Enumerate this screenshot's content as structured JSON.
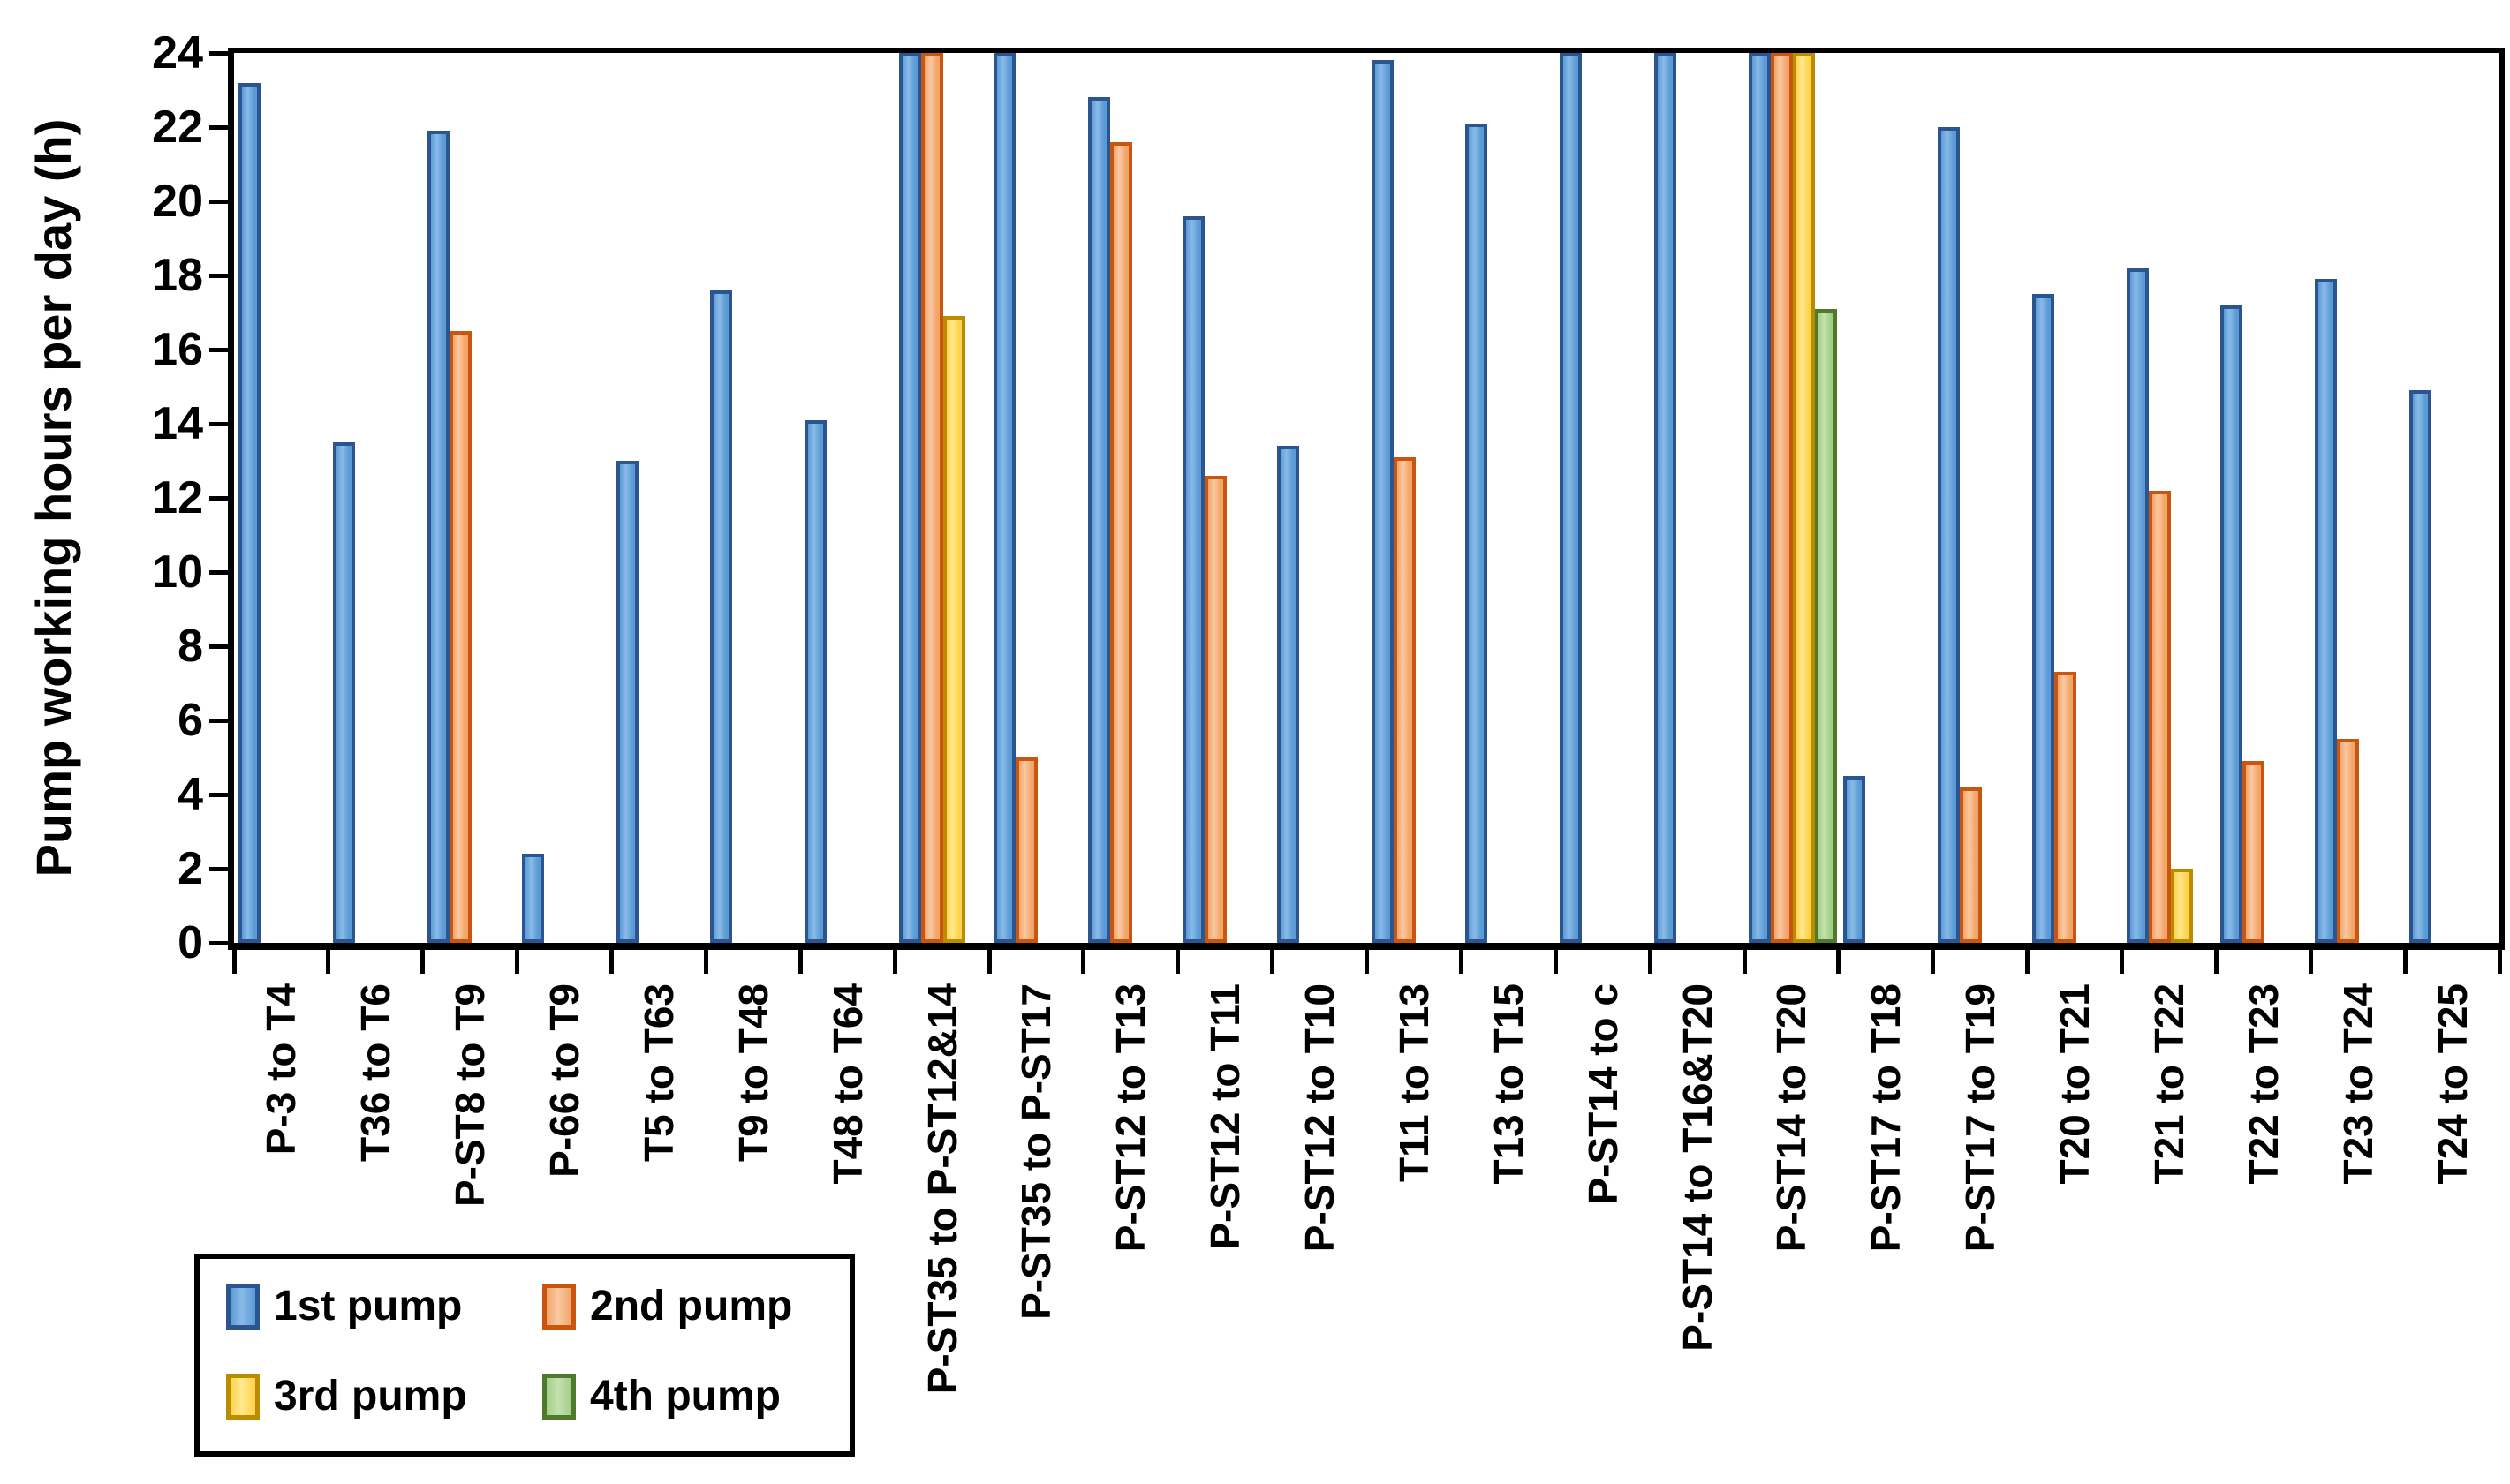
{
  "chart_data": {
    "type": "bar",
    "title": "",
    "ylabel": "Pump working hours per day (h)",
    "xlabel": "",
    "ylim": [
      0,
      24
    ],
    "y_tick_step": 2,
    "y_ticks": [
      "0",
      "2",
      "4",
      "6",
      "8",
      "10",
      "12",
      "14",
      "16",
      "18",
      "20",
      "22",
      "24"
    ],
    "grid": false,
    "legend_position": "bottom-left",
    "categories": [
      "P-3 to T4",
      "T36 to T6",
      "P-ST8 to T9",
      "P-66 to T9",
      "T5 to T63",
      "T9 to T48",
      "T48 to T64",
      "P-ST35 to P-ST12&14",
      "P-ST35 to P-ST17",
      "P-ST12 to T13",
      "P-ST12 to T11",
      "P-ST12 to T10",
      "T11 to T13",
      "T13 to T15",
      "P-ST14 to c",
      "P-ST14 to T16&T20",
      "P-ST14 to T20",
      "P-ST17 to T18",
      "P-ST17 to T19",
      "T20 to T21",
      "T21 to T22",
      "T22 to T23",
      "T23 to T24",
      "T24 to T25"
    ],
    "series": [
      {
        "name": "1st pump",
        "fill": "#5B9BD5",
        "fill_light": "#8ABBE8",
        "stroke": "#2A5591",
        "values": [
          23.2,
          13.5,
          21.9,
          2.4,
          13.0,
          17.6,
          14.1,
          24,
          24,
          22.8,
          19.6,
          13.4,
          23.8,
          22.1,
          24,
          24,
          24,
          4.5,
          22.0,
          17.5,
          18.2,
          17.2,
          17.9,
          14.9
        ]
      },
      {
        "name": "2nd pump",
        "fill": "#F2A469",
        "fill_light": "#FAC9A2",
        "stroke": "#C9560F",
        "values": [
          null,
          null,
          16.5,
          null,
          null,
          null,
          null,
          24,
          5.0,
          21.6,
          12.6,
          null,
          13.1,
          null,
          null,
          null,
          24,
          null,
          4.2,
          7.3,
          12.2,
          4.9,
          5.5,
          null
        ]
      },
      {
        "name": "3rd pump",
        "fill": "#FFD34B",
        "fill_light": "#FFE88E",
        "stroke": "#BA8D00",
        "values": [
          null,
          null,
          null,
          null,
          null,
          null,
          null,
          16.9,
          null,
          null,
          null,
          null,
          null,
          null,
          null,
          null,
          24,
          null,
          null,
          null,
          2.0,
          null,
          null,
          null
        ]
      },
      {
        "name": "4th pump",
        "fill": "#A3CD87",
        "fill_light": "#C3E2AE",
        "stroke": "#4F7A2D",
        "values": [
          null,
          null,
          null,
          null,
          null,
          null,
          null,
          null,
          null,
          null,
          null,
          null,
          null,
          null,
          null,
          null,
          17.1,
          null,
          null,
          null,
          null,
          null,
          null,
          null
        ]
      }
    ]
  }
}
